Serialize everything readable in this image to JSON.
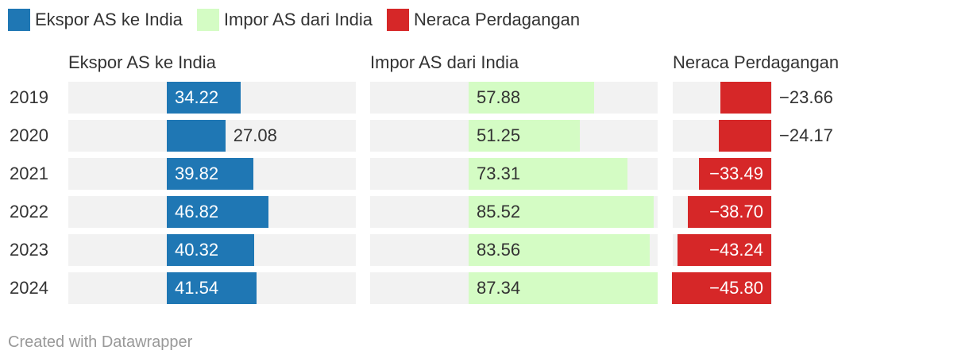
{
  "legend": [
    {
      "label": "Ekspor AS ke India",
      "color": "#1f77b4"
    },
    {
      "label": "Impor AS dari India",
      "color": "#d4fcc4"
    },
    {
      "label": "Neraca Perdagangan",
      "color": "#d62728"
    }
  ],
  "footer": "Created with Datawrapper",
  "chart_data": {
    "type": "bar",
    "categories": [
      "2019",
      "2020",
      "2021",
      "2022",
      "2023",
      "2024"
    ],
    "series": [
      {
        "name": "Ekspor AS ke India",
        "values": [
          34.22,
          27.08,
          39.82,
          46.82,
          40.32,
          41.54
        ],
        "labels": [
          "34.22",
          "27.08",
          "39.82",
          "46.82",
          "40.32",
          "41.54"
        ],
        "color": "#1f77b4",
        "text_color": "#ffffff"
      },
      {
        "name": "Impor AS dari India",
        "values": [
          57.88,
          51.25,
          73.31,
          85.52,
          83.56,
          87.34
        ],
        "labels": [
          "57.88",
          "51.25",
          "73.31",
          "85.52",
          "83.56",
          "87.34"
        ],
        "color": "#d4fcc4",
        "text_color": "#333333"
      },
      {
        "name": "Neraca Perdagangan",
        "values": [
          -23.66,
          -24.17,
          -33.49,
          -38.7,
          -43.24,
          -45.8
        ],
        "labels": [
          "−23.66",
          "−24.17",
          "−33.49",
          "−38.70",
          "−43.24",
          "−45.80"
        ],
        "color": "#d62728",
        "text_color": "#ffffff"
      }
    ],
    "xlim": [
      -45.8,
      87.34
    ],
    "grid": false,
    "legend_position": "top-left"
  }
}
